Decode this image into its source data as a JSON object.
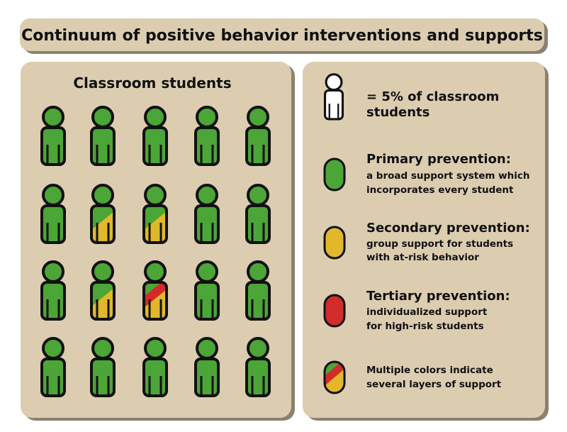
{
  "title": "Continuum of positive behavior interventions and supports",
  "colors": {
    "panel": "#dccdb1",
    "green": "#4ca537",
    "yellow": "#e2b82b",
    "red": "#d22b2b",
    "outline": "#111111",
    "unit": "#ffffff"
  },
  "classroom": {
    "title": "Classroom students",
    "students": [
      [
        "green",
        "green",
        "green",
        "green",
        "green"
      ],
      [
        "green",
        "green-yellow",
        "green-yellow",
        "green",
        "green"
      ],
      [
        "green",
        "green-yellow",
        "green-yellow-red",
        "green",
        "green"
      ],
      [
        "green",
        "green",
        "green",
        "green",
        "green"
      ]
    ]
  },
  "legend": {
    "unit": {
      "icon": "person-outline-icon",
      "line1": "= 5% of classroom",
      "line2": "students"
    },
    "items": [
      {
        "swatch": "green",
        "heading": "Primary prevention:",
        "lines": [
          "a broad support system which",
          "incorporates every student"
        ]
      },
      {
        "swatch": "yellow",
        "heading": "Secondary prevention:",
        "lines": [
          "group support for students",
          "with at-risk behavior"
        ]
      },
      {
        "swatch": "red",
        "heading": "Tertiary prevention:",
        "lines": [
          "individualized support",
          "for high-risk students"
        ]
      },
      {
        "swatch": "green-red-yellow",
        "heading": "",
        "lines": [
          "Multiple colors indicate",
          "several layers of support"
        ]
      }
    ]
  }
}
